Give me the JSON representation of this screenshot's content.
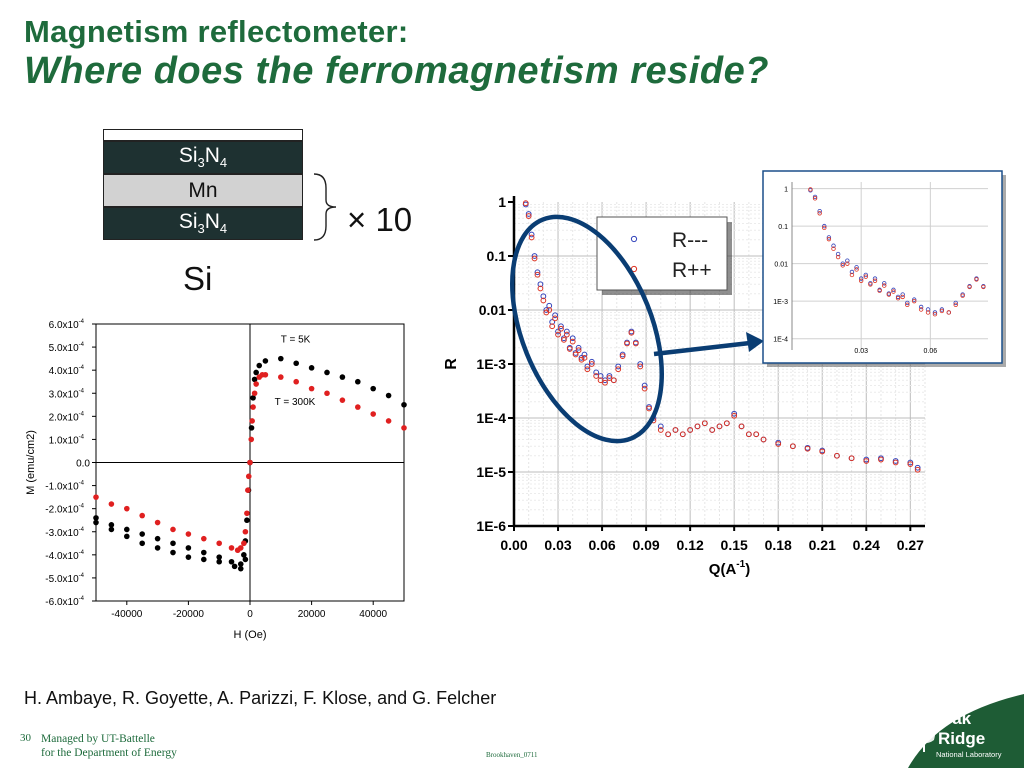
{
  "title": {
    "line1": "Magnetism reflectometer:",
    "line2": "Where does the ferromagnetism reside?"
  },
  "stack": {
    "layers": [
      {
        "base": "Si",
        "sub1": "3",
        "mid": "N",
        "sub2": "4"
      },
      {
        "text": "Mn"
      },
      {
        "base": "Si",
        "sub1": "3",
        "mid": "N",
        "sub2": "4"
      }
    ],
    "repeat_label": "× 10",
    "substrate_label": "Si"
  },
  "chart_data": [
    {
      "type": "scatter",
      "title": "",
      "xlabel": "H (Oe)",
      "ylabel": "M (emu/cm2)",
      "xlim": [
        -50000,
        50000
      ],
      "ylim": [
        -0.0006,
        0.0006
      ],
      "x_ticks": [
        -40000,
        -20000,
        0,
        20000,
        40000
      ],
      "y_ticks": [
        {
          "mant": "6.0x10",
          "exp": "-4",
          "value": 0.0006
        },
        {
          "mant": "5.0x10",
          "exp": "-4",
          "value": 0.0005
        },
        {
          "mant": "4.0x10",
          "exp": "-4",
          "value": 0.0004
        },
        {
          "mant": "3.0x10",
          "exp": "-4",
          "value": 0.0003
        },
        {
          "mant": "2.0x10",
          "exp": "-4",
          "value": 0.0002
        },
        {
          "mant": "1.0x10",
          "exp": "-4",
          "value": 0.0001
        },
        {
          "mant": "0.0",
          "exp": "",
          "value": 0
        },
        {
          "mant": "-1.0x10",
          "exp": "-4",
          "value": -0.0001
        },
        {
          "mant": "-2.0x10",
          "exp": "-4",
          "value": -0.0002
        },
        {
          "mant": "-3.0x10",
          "exp": "-4",
          "value": -0.0003
        },
        {
          "mant": "-4.0x10",
          "exp": "-4",
          "value": -0.0004
        },
        {
          "mant": "-5.0x10",
          "exp": "-4",
          "value": -0.0005
        },
        {
          "mant": "-6.0x10",
          "exp": "-4",
          "value": -0.0006
        }
      ],
      "annotations": [
        {
          "text": "T = 5K",
          "x": 10000,
          "y": 0.00052
        },
        {
          "text": "T = 300K",
          "x": 8000,
          "y": 0.00025
        }
      ],
      "series": [
        {
          "name": "T = 5K",
          "color": "#000000",
          "x": [
            -50000,
            -45000,
            -40000,
            -35000,
            -30000,
            -25000,
            -20000,
            -15000,
            -10000,
            -6000,
            -3000,
            -2000,
            -1500,
            -1000,
            -500,
            0,
            500,
            1000,
            1500,
            2000,
            3000,
            5000,
            10000,
            15000,
            20000,
            25000,
            30000,
            35000,
            40000,
            45000,
            50000,
            -50000,
            -45000,
            -40000,
            -35000,
            -30000,
            -25000,
            -20000,
            -15000,
            -10000,
            -5000,
            -3000,
            -1500
          ],
          "y": [
            -0.00024,
            -0.00027,
            -0.00029,
            -0.00031,
            -0.00033,
            -0.00035,
            -0.00037,
            -0.00039,
            -0.00041,
            -0.00043,
            -0.00044,
            -0.0004,
            -0.00034,
            -0.00025,
            -0.00012,
            0.0,
            0.00015,
            0.00028,
            0.00036,
            0.00039,
            0.00042,
            0.00044,
            0.00045,
            0.00043,
            0.00041,
            0.00039,
            0.00037,
            0.00035,
            0.00032,
            0.00029,
            0.00025,
            -0.00026,
            -0.00029,
            -0.00032,
            -0.00035,
            -0.00037,
            -0.00039,
            -0.00041,
            -0.00042,
            -0.00043,
            -0.00045,
            -0.00046,
            -0.00042
          ]
        },
        {
          "name": "T = 300K",
          "color": "#e02020",
          "x": [
            -50000,
            -45000,
            -40000,
            -35000,
            -30000,
            -25000,
            -20000,
            -15000,
            -10000,
            -6000,
            -4000,
            -3000,
            -2000,
            -1500,
            -1000,
            -700,
            -400,
            0,
            400,
            700,
            1000,
            1500,
            2000,
            3000,
            4000,
            5000,
            10000,
            15000,
            20000,
            25000,
            30000,
            35000,
            40000,
            45000,
            50000
          ],
          "y": [
            -0.00015,
            -0.00018,
            -0.0002,
            -0.00023,
            -0.00026,
            -0.00029,
            -0.00031,
            -0.00033,
            -0.00035,
            -0.00037,
            -0.00038,
            -0.00037,
            -0.00035,
            -0.0003,
            -0.00022,
            -0.00012,
            -6e-05,
            0.0,
            0.0001,
            0.00018,
            0.00024,
            0.0003,
            0.00034,
            0.00037,
            0.00038,
            0.00038,
            0.00037,
            0.00035,
            0.00032,
            0.0003,
            0.00027,
            0.00024,
            0.00021,
            0.00018,
            0.00015
          ]
        }
      ]
    },
    {
      "type": "scatter",
      "title": "",
      "xlabel": "Q(A",
      "xlabel_sup": "-1",
      "xlabel_end": ")",
      "ylabel": "R",
      "yscale": "log",
      "xlim": [
        0.0,
        0.28
      ],
      "ylim": [
        1e-06,
        1
      ],
      "x_ticks": [
        "0.00",
        "0.03",
        "0.06",
        "0.09",
        "0.12",
        "0.15",
        "0.18",
        "0.21",
        "0.24",
        "0.27"
      ],
      "y_ticks": [
        {
          "label": "1",
          "value": 1
        },
        {
          "label": "0.1",
          "value": 0.1
        },
        {
          "label": "0.01",
          "value": 0.01
        },
        {
          "label": "1E-3",
          "value": 0.001
        },
        {
          "label": "1E-4",
          "value": 0.0001
        },
        {
          "label": "1E-5",
          "value": 1e-05
        },
        {
          "label": "1E-6",
          "value": 1e-06
        }
      ],
      "legend": {
        "position": "top-right",
        "entries": [
          "R---",
          "R++"
        ]
      },
      "series": [
        {
          "name": "R---",
          "color": "#3344bb",
          "x": [
            0.008,
            0.01,
            0.012,
            0.014,
            0.016,
            0.018,
            0.02,
            0.022,
            0.024,
            0.026,
            0.028,
            0.03,
            0.032,
            0.034,
            0.036,
            0.038,
            0.04,
            0.042,
            0.044,
            0.046,
            0.048,
            0.05,
            0.053,
            0.056,
            0.059,
            0.062,
            0.065,
            0.068,
            0.071,
            0.074,
            0.077,
            0.08,
            0.083,
            0.086,
            0.089,
            0.092,
            0.095,
            0.1,
            0.105,
            0.11,
            0.115,
            0.12,
            0.125,
            0.13,
            0.135,
            0.14,
            0.145,
            0.15,
            0.155,
            0.16,
            0.165,
            0.17,
            0.18,
            0.19,
            0.2,
            0.21,
            0.22,
            0.23,
            0.24,
            0.25,
            0.26,
            0.27,
            0.275
          ],
          "y": [
            0.9,
            0.6,
            0.25,
            0.1,
            0.05,
            0.03,
            0.018,
            0.01,
            0.012,
            0.006,
            0.008,
            0.004,
            0.005,
            0.003,
            0.004,
            0.002,
            0.003,
            0.0016,
            0.002,
            0.0013,
            0.0015,
            0.0009,
            0.0011,
            0.0007,
            0.0006,
            0.0005,
            0.0006,
            0.0005,
            0.0009,
            0.0015,
            0.0025,
            0.004,
            0.0025,
            0.001,
            0.0004,
            0.00016,
            0.0001,
            7e-05,
            5e-05,
            6e-05,
            5e-05,
            6e-05,
            7e-05,
            8e-05,
            6e-05,
            7e-05,
            8e-05,
            0.00012,
            7e-05,
            5e-05,
            5e-05,
            4e-05,
            3.5e-05,
            3e-05,
            2.8e-05,
            2.5e-05,
            2e-05,
            1.8e-05,
            1.7e-05,
            1.8e-05,
            1.6e-05,
            1.5e-05,
            1.2e-05
          ]
        },
        {
          "name": "R++",
          "color": "#dd3322",
          "x": [
            0.008,
            0.01,
            0.012,
            0.014,
            0.016,
            0.018,
            0.02,
            0.022,
            0.024,
            0.026,
            0.028,
            0.03,
            0.032,
            0.034,
            0.036,
            0.038,
            0.04,
            0.042,
            0.044,
            0.046,
            0.048,
            0.05,
            0.053,
            0.056,
            0.059,
            0.062,
            0.065,
            0.068,
            0.071,
            0.074,
            0.077,
            0.08,
            0.083,
            0.086,
            0.089,
            0.092,
            0.095,
            0.1,
            0.105,
            0.11,
            0.115,
            0.12,
            0.125,
            0.13,
            0.135,
            0.14,
            0.145,
            0.15,
            0.155,
            0.16,
            0.165,
            0.17,
            0.18,
            0.19,
            0.2,
            0.21,
            0.22,
            0.23,
            0.24,
            0.25,
            0.26,
            0.27,
            0.275
          ],
          "y": [
            0.95,
            0.55,
            0.22,
            0.09,
            0.045,
            0.025,
            0.015,
            0.009,
            0.01,
            0.005,
            0.007,
            0.0035,
            0.0045,
            0.0028,
            0.0035,
            0.0019,
            0.0026,
            0.0015,
            0.0018,
            0.0012,
            0.0013,
            0.0008,
            0.001,
            0.0006,
            0.0005,
            0.00045,
            0.00055,
            0.0005,
            0.0008,
            0.0014,
            0.0024,
            0.0038,
            0.0024,
            0.0009,
            0.00035,
            0.00015,
            9e-05,
            6e-05,
            5e-05,
            6e-05,
            5e-05,
            6e-05,
            7e-05,
            8e-05,
            6e-05,
            7e-05,
            8e-05,
            0.00011,
            7e-05,
            5e-05,
            5e-05,
            4e-05,
            3.3e-05,
            3e-05,
            2.7e-05,
            2.4e-05,
            2e-05,
            1.8e-05,
            1.6e-05,
            1.7e-05,
            1.5e-05,
            1.4e-05,
            1.1e-05
          ]
        }
      ]
    },
    {
      "type": "scatter",
      "title": "",
      "yscale": "log",
      "xlim": [
        0.0,
        0.085
      ],
      "ylim": [
        5e-05,
        1.5
      ],
      "x_ticks": [
        "0.03",
        "0.06"
      ],
      "y_ticks": [
        {
          "label": "1",
          "value": 1
        },
        {
          "label": "0.1",
          "value": 0.1
        },
        {
          "label": "0.01",
          "value": 0.01
        },
        {
          "label": "1E-3",
          "value": 0.001
        },
        {
          "label": "1E-4",
          "value": 0.0001
        }
      ]
    }
  ],
  "authors": "H. Ambaye, R. Goyette, A. Parizzi, F. Klose, and G. Felcher",
  "footer": {
    "page_number": "30",
    "line1": "Managed by UT-Battelle",
    "line2": "for the Department of Energy",
    "center": "Brookhaven_0711"
  },
  "logo": {
    "word1": "Oak",
    "word2": "Ridge",
    "word3": "National Laboratory"
  },
  "colors": {
    "title_green": "#1e6b3c",
    "layer_dark": "#1e3131",
    "layer_light": "#d2d2d2",
    "highlight_ellipse": "#0a3d73"
  }
}
